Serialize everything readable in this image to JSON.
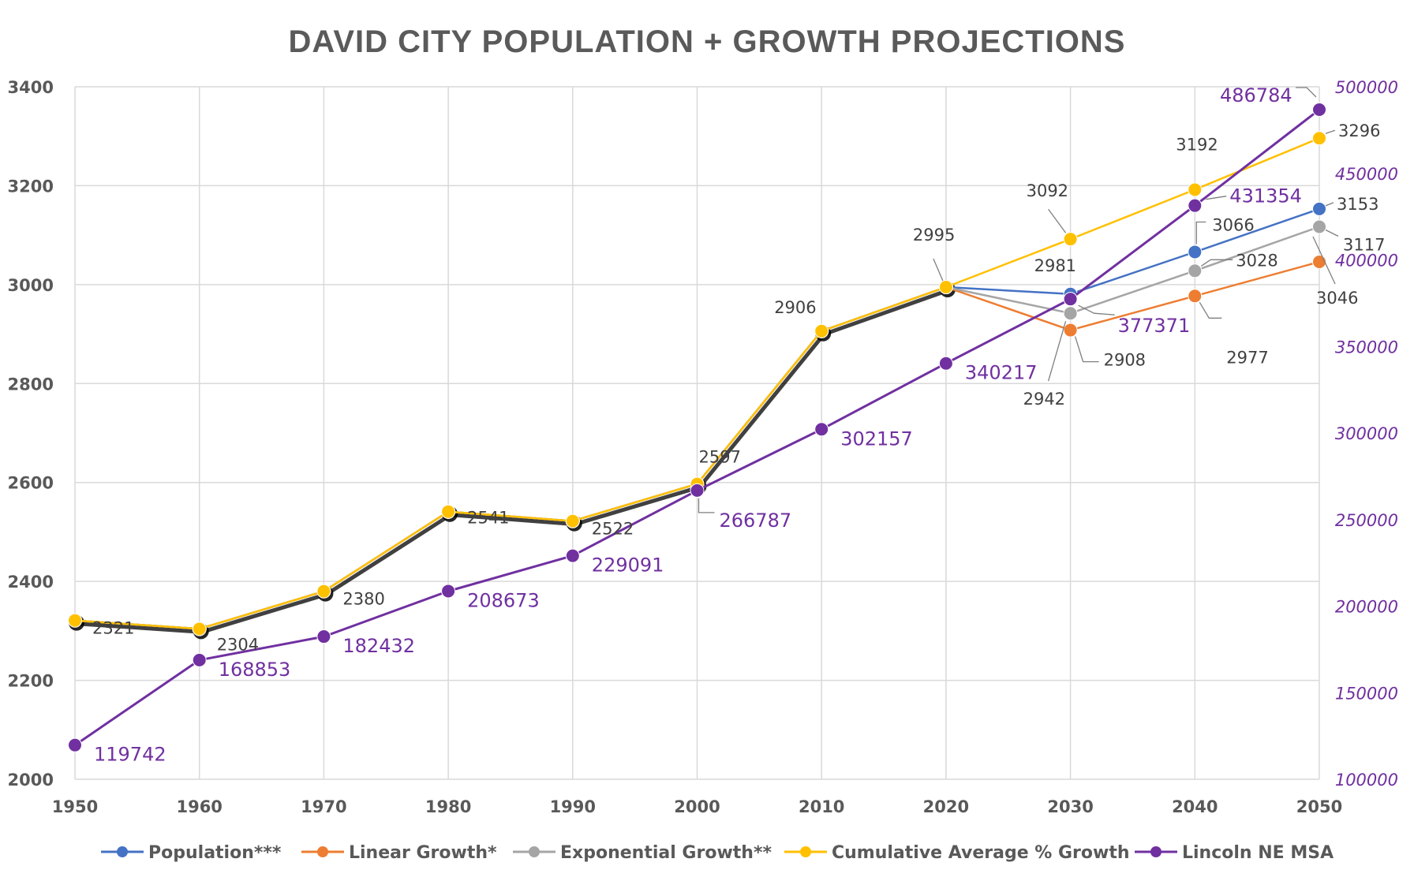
{
  "chart_data": {
    "type": "line",
    "title": "DAVID CITY POPULATION + GROWTH PROJECTIONS",
    "x": [
      "1950",
      "1960",
      "1970",
      "1980",
      "1990",
      "2000",
      "2010",
      "2020",
      "2030",
      "2040",
      "2050"
    ],
    "x_ticks": [
      "1950",
      "1960",
      "1970",
      "1980",
      "1990",
      "2000",
      "2010",
      "2020",
      "2030",
      "2040",
      "2050"
    ],
    "y_left": {
      "range": [
        2000,
        3400
      ],
      "ticks": [
        "2000",
        "2200",
        "2400",
        "2600",
        "2800",
        "3000",
        "3200",
        "3400"
      ]
    },
    "y_right": {
      "range": [
        100000,
        500000
      ],
      "ticks": [
        "100000",
        "150000",
        "200000",
        "250000",
        "300000",
        "350000",
        "400000",
        "450000",
        "500000"
      ]
    },
    "grid": true,
    "legend_position": "bottom",
    "series": [
      {
        "name": "Population***",
        "color": "#4472c4",
        "axis": "left",
        "values": [
          2321,
          2304,
          2380,
          2541,
          2522,
          2597,
          2906,
          2995,
          2981,
          3066,
          3153
        ],
        "labels": [
          "2321",
          "2304",
          "2380",
          "2541",
          "2522",
          "2597",
          "2906",
          "2995",
          "2981",
          "3066",
          "3153"
        ]
      },
      {
        "name": "Linear Growth*",
        "color": "#ed7d31",
        "axis": "left",
        "values": [
          2321,
          2304,
          2380,
          2541,
          2522,
          2597,
          2906,
          2995,
          2908,
          2977,
          3046
        ],
        "labels": [
          null,
          null,
          null,
          null,
          null,
          null,
          null,
          null,
          "2908",
          "2977",
          "3046"
        ]
      },
      {
        "name": "Exponential Growth**",
        "color": "#a5a5a5",
        "axis": "left",
        "values": [
          2321,
          2304,
          2380,
          2541,
          2522,
          2597,
          2906,
          2995,
          2942,
          3028,
          3117
        ],
        "labels": [
          null,
          null,
          null,
          null,
          null,
          null,
          null,
          null,
          "2942",
          "3028",
          "3117"
        ]
      },
      {
        "name": "Cumulative Average % Growth",
        "color": "#ffc000",
        "axis": "left",
        "values": [
          2321,
          2304,
          2380,
          2541,
          2522,
          2597,
          2906,
          2995,
          3092,
          3192,
          3296
        ],
        "labels": [
          null,
          null,
          null,
          null,
          null,
          null,
          null,
          null,
          "3092",
          "3192",
          "3296"
        ]
      },
      {
        "name": "Lincoln NE MSA",
        "color": "#7030a0",
        "axis": "right",
        "values": [
          119742,
          168853,
          182432,
          208673,
          229091,
          266787,
          302157,
          340217,
          377371,
          431354,
          486784
        ],
        "labels": [
          "119742",
          "168853",
          "182432",
          "208673",
          "229091",
          "266787",
          "302157",
          "340217",
          "377371",
          "431354",
          "486784"
        ]
      }
    ]
  }
}
